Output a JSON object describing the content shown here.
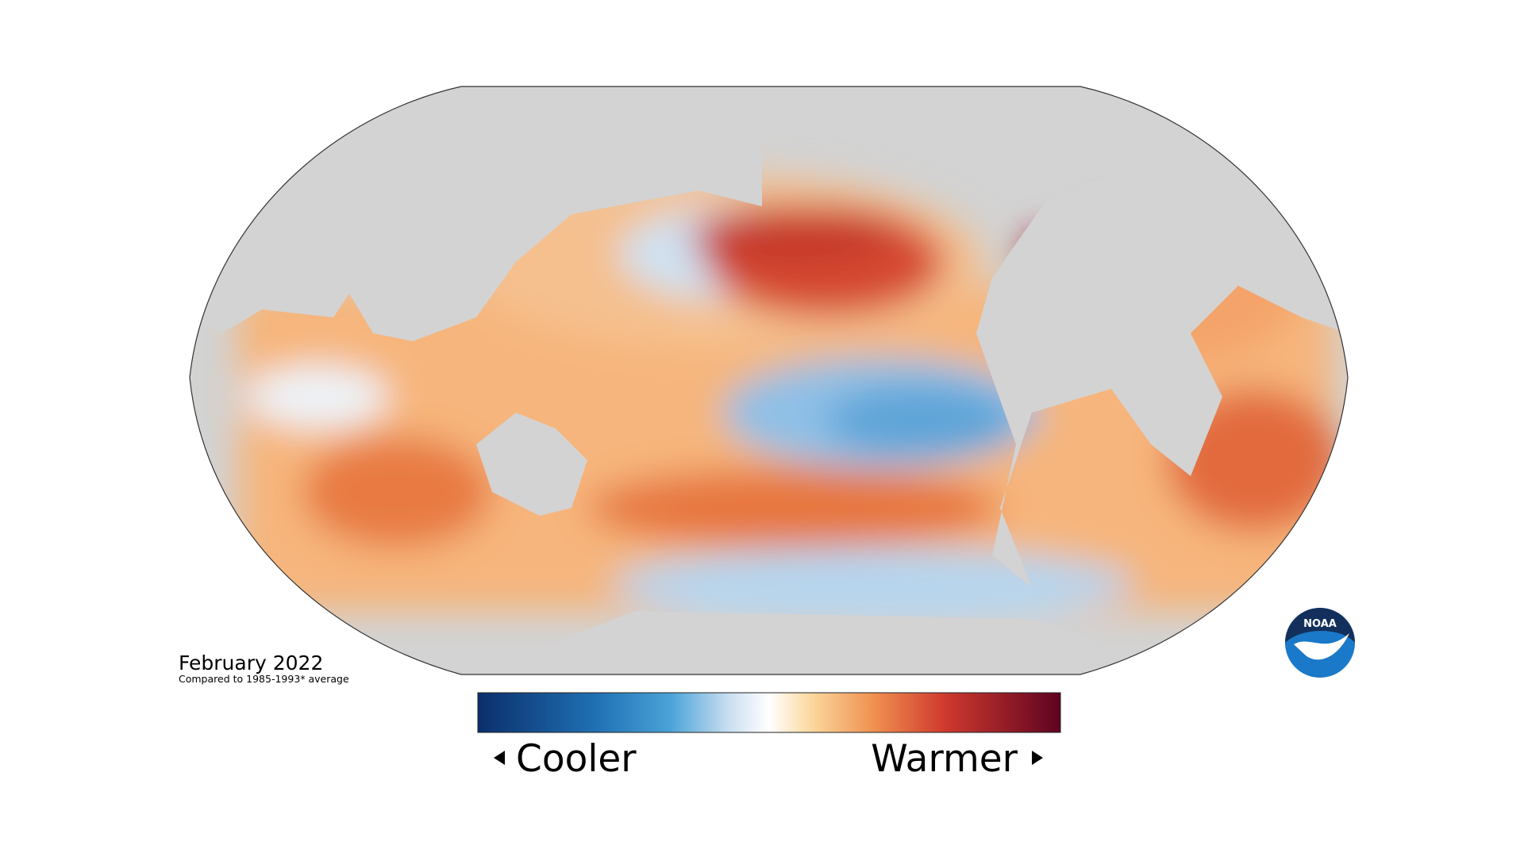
{
  "map": {
    "date": "February 2022",
    "baseline": "Compared to 1985-1993* average"
  },
  "legend": {
    "low": "Cooler",
    "high": "Warmer"
  },
  "logo": {
    "text": "NOAA"
  }
}
